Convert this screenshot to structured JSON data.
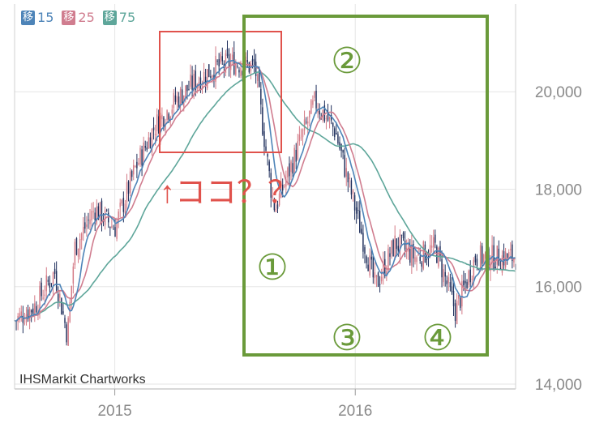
{
  "legend": [
    {
      "label": "移",
      "period": "15",
      "color": "#4d84b8"
    },
    {
      "label": "移",
      "period": "25",
      "color": "#d07d8f"
    },
    {
      "label": "移",
      "period": "75",
      "color": "#5ea69a"
    }
  ],
  "credit": "IHSMarkit Chartworks",
  "annotations": {
    "callout_text": "↑ココ？？",
    "marker_1": "①",
    "marker_2": "②",
    "marker_3": "③",
    "marker_4": "④",
    "red_color": "#e0524c",
    "green_color": "#6a9a3a"
  },
  "chart_data": {
    "type": "candlestick",
    "y_ticks": [
      "20,000",
      "18,000",
      "16,000",
      "14,000"
    ],
    "y_tick_values": [
      20000,
      18000,
      16000,
      14000
    ],
    "ylim": [
      13900,
      21800
    ],
    "x_ticks": [
      "2015",
      "2016"
    ],
    "x_tick_dates": [
      "2015-01",
      "2016-01"
    ],
    "xlim": [
      "2014-08",
      "2016-09"
    ],
    "grid": true,
    "path": [
      [
        "2014-08",
        15300
      ],
      [
        "2014-09",
        15600
      ],
      [
        "2014-10",
        16300
      ],
      [
        "2014-10-20",
        15000
      ],
      [
        "2014-11",
        16800
      ],
      [
        "2014-12",
        17600
      ],
      [
        "2015-01",
        17200
      ],
      [
        "2015-02",
        18400
      ],
      [
        "2015-03",
        19300
      ],
      [
        "2015-04",
        19800
      ],
      [
        "2015-05",
        20200
      ],
      [
        "2015-06",
        20500
      ],
      [
        "2015-07",
        20600
      ],
      [
        "2015-08",
        20500
      ],
      [
        "2015-08-25",
        18000
      ],
      [
        "2015-09",
        17600
      ],
      [
        "2015-10",
        18700
      ],
      [
        "2015-11",
        19800
      ],
      [
        "2015-12",
        19200
      ],
      [
        "2016-01",
        17600
      ],
      [
        "2016-02",
        16000
      ],
      [
        "2016-03",
        16900
      ],
      [
        "2016-04",
        16600
      ],
      [
        "2016-05",
        16800
      ],
      [
        "2016-06",
        15500
      ],
      [
        "2016-07",
        16600
      ],
      [
        "2016-08",
        16600
      ],
      [
        "2016-09",
        16600
      ]
    ]
  }
}
